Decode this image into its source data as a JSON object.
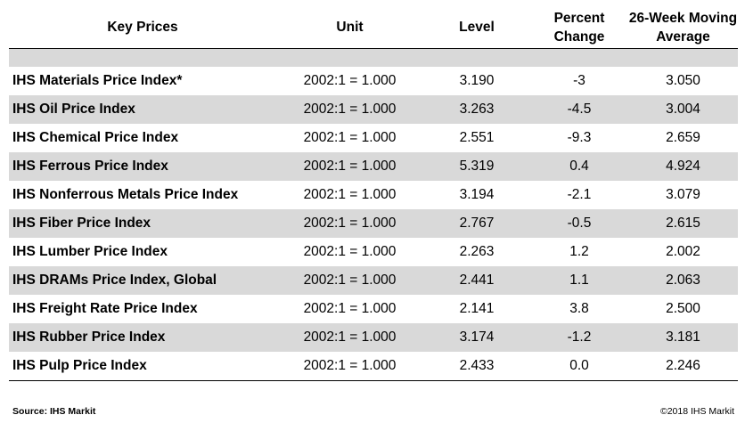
{
  "table": {
    "headers": {
      "key": "Key Prices",
      "unit": "Unit",
      "level": "Level",
      "pct_line1": "Percent",
      "pct_line2": "Change",
      "avg_line1": "26-Week Moving",
      "avg_line2": "Average"
    },
    "rows": [
      {
        "name": "IHS Materials Price Index*",
        "unit": "2002:1 = 1.000",
        "level": "3.190",
        "pct": "-3",
        "avg": "3.050"
      },
      {
        "name": "IHS Oil Price Index",
        "unit": "2002:1 = 1.000",
        "level": "3.263",
        "pct": "-4.5",
        "avg": "3.004"
      },
      {
        "name": "IHS Chemical Price Index",
        "unit": "2002:1 = 1.000",
        "level": "2.551",
        "pct": "-9.3",
        "avg": "2.659"
      },
      {
        "name": "IHS Ferrous Price Index",
        "unit": "2002:1 = 1.000",
        "level": "5.319",
        "pct": "0.4",
        "avg": "4.924"
      },
      {
        "name": "IHS Nonferrous Metals Price Index",
        "unit": "2002:1 = 1.000",
        "level": "3.194",
        "pct": "-2.1",
        "avg": "3.079"
      },
      {
        "name": "IHS Fiber Price Index",
        "unit": "2002:1 = 1.000",
        "level": "2.767",
        "pct": "-0.5",
        "avg": "2.615"
      },
      {
        "name": "IHS Lumber Price Index",
        "unit": "2002:1 = 1.000",
        "level": "2.263",
        "pct": "1.2",
        "avg": "2.002"
      },
      {
        "name": "IHS DRAMs Price Index, Global",
        "unit": "2002:1 = 1.000",
        "level": "2.441",
        "pct": "1.1",
        "avg": "2.063"
      },
      {
        "name": "IHS Freight Rate Price Index",
        "unit": "2002:1 = 1.000",
        "level": "2.141",
        "pct": "3.8",
        "avg": "2.500"
      },
      {
        "name": "IHS Rubber Price Index",
        "unit": "2002:1 = 1.000",
        "level": "3.174",
        "pct": "-1.2",
        "avg": "3.181"
      },
      {
        "name": "IHS Pulp Price Index",
        "unit": "2002:1 = 1.000",
        "level": "2.433",
        "pct": "0.0",
        "avg": "2.246"
      }
    ]
  },
  "footer": {
    "source": "Source: IHS Markit",
    "copyright": "©2018 IHS Markit"
  },
  "colors": {
    "shade": "#d9d9d9",
    "background": "#ffffff"
  }
}
